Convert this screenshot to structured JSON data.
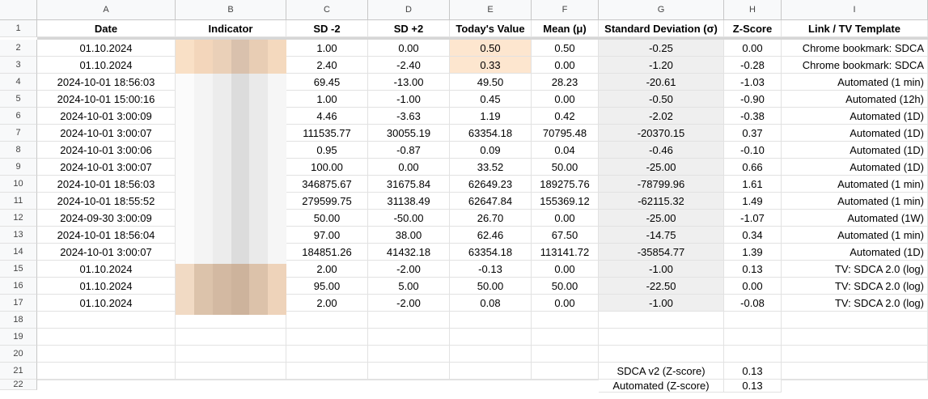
{
  "columns": [
    "A",
    "B",
    "C",
    "D",
    "E",
    "F",
    "G",
    "H",
    "I"
  ],
  "row_numbers": [
    "1",
    "2",
    "3",
    "4",
    "5",
    "6",
    "7",
    "8",
    "9",
    "10",
    "11",
    "12",
    "13",
    "14",
    "15",
    "16",
    "17",
    "18",
    "19",
    "20",
    "21",
    "22"
  ],
  "header": [
    "Date",
    "Indicator",
    "SD -2",
    "SD +2",
    "Today's Value",
    "Mean (μ)",
    "Standard Deviation (σ)",
    "Z-Score",
    "Link / TV Template"
  ],
  "rows": [
    [
      "01.10.2024",
      "",
      "1.00",
      "0.00",
      "0.50",
      "0.50",
      "-0.25",
      "0.00",
      "Chrome bookmark: SDCA"
    ],
    [
      "01.10.2024",
      "",
      "2.40",
      "-2.40",
      "0.33",
      "0.00",
      "-1.20",
      "-0.28",
      "Chrome bookmark: SDCA"
    ],
    [
      "2024-10-01 18:56:03",
      "",
      "69.45",
      "-13.00",
      "49.50",
      "28.23",
      "-20.61",
      "-1.03",
      "Automated (1 min)"
    ],
    [
      "2024-10-01 15:00:16",
      "",
      "1.00",
      "-1.00",
      "0.45",
      "0.00",
      "-0.50",
      "-0.90",
      "Automated (12h)"
    ],
    [
      "2024-10-01 3:00:09",
      "",
      "4.46",
      "-3.63",
      "1.19",
      "0.42",
      "-2.02",
      "-0.38",
      "Automated (1D)"
    ],
    [
      "2024-10-01 3:00:07",
      "",
      "111535.77",
      "30055.19",
      "63354.18",
      "70795.48",
      "-20370.15",
      "0.37",
      "Automated (1D)"
    ],
    [
      "2024-10-01 3:00:06",
      "",
      "0.95",
      "-0.87",
      "0.09",
      "0.04",
      "-0.46",
      "-0.10",
      "Automated (1D)"
    ],
    [
      "2024-10-01 3:00:07",
      "",
      "100.00",
      "0.00",
      "33.52",
      "50.00",
      "-25.00",
      "0.66",
      "Automated (1D)"
    ],
    [
      "2024-10-01 18:56:03",
      "",
      "346875.67",
      "31675.84",
      "62649.23",
      "189275.76",
      "-78799.96",
      "1.61",
      "Automated (1 min)"
    ],
    [
      "2024-10-01 18:55:52",
      "",
      "279599.75",
      "31138.49",
      "62647.84",
      "155369.12",
      "-62115.32",
      "1.49",
      "Automated (1 min)"
    ],
    [
      "2024-09-30 3:00:09",
      "",
      "50.00",
      "-50.00",
      "26.70",
      "0.00",
      "-25.00",
      "-1.07",
      "Automated (1W)"
    ],
    [
      "2024-10-01 18:56:04",
      "",
      "97.00",
      "38.00",
      "62.46",
      "67.50",
      "-14.75",
      "0.34",
      "Automated (1 min)"
    ],
    [
      "2024-10-01 3:00:07",
      "",
      "184851.26",
      "41432.18",
      "63354.18",
      "113141.72",
      "-35854.77",
      "1.39",
      "Automated (1D)"
    ],
    [
      "01.10.2024",
      "",
      "2.00",
      "-2.00",
      "-0.13",
      "0.00",
      "-1.00",
      "0.13",
      "TV: SDCA 2.0 (log)"
    ],
    [
      "01.10.2024",
      "",
      "95.00",
      "5.00",
      "50.00",
      "50.00",
      "-22.50",
      "0.00",
      "TV: SDCA 2.0 (log)"
    ],
    [
      "01.10.2024",
      "",
      "2.00",
      "-2.00",
      "0.08",
      "0.00",
      "-1.00",
      "-0.08",
      "TV: SDCA 2.0 (log)"
    ],
    [
      "",
      "",
      "",
      "",
      "",
      "",
      "",
      "",
      ""
    ],
    [
      "",
      "",
      "",
      "",
      "",
      "",
      "",
      "",
      ""
    ],
    [
      "",
      "",
      "",
      "",
      "",
      "",
      "",
      "",
      ""
    ],
    [
      "",
      "",
      "",
      "",
      "",
      "",
      "SDCA v2 (Z-score)",
      "0.13",
      ""
    ],
    [
      "",
      "",
      "",
      "",
      "",
      "",
      "Automated (Z-score)",
      "0.13",
      ""
    ]
  ],
  "colors": {
    "highlight_orange": "#fde6cf",
    "grey_column": "#efefef",
    "header_bg": "#f8f9fa"
  }
}
